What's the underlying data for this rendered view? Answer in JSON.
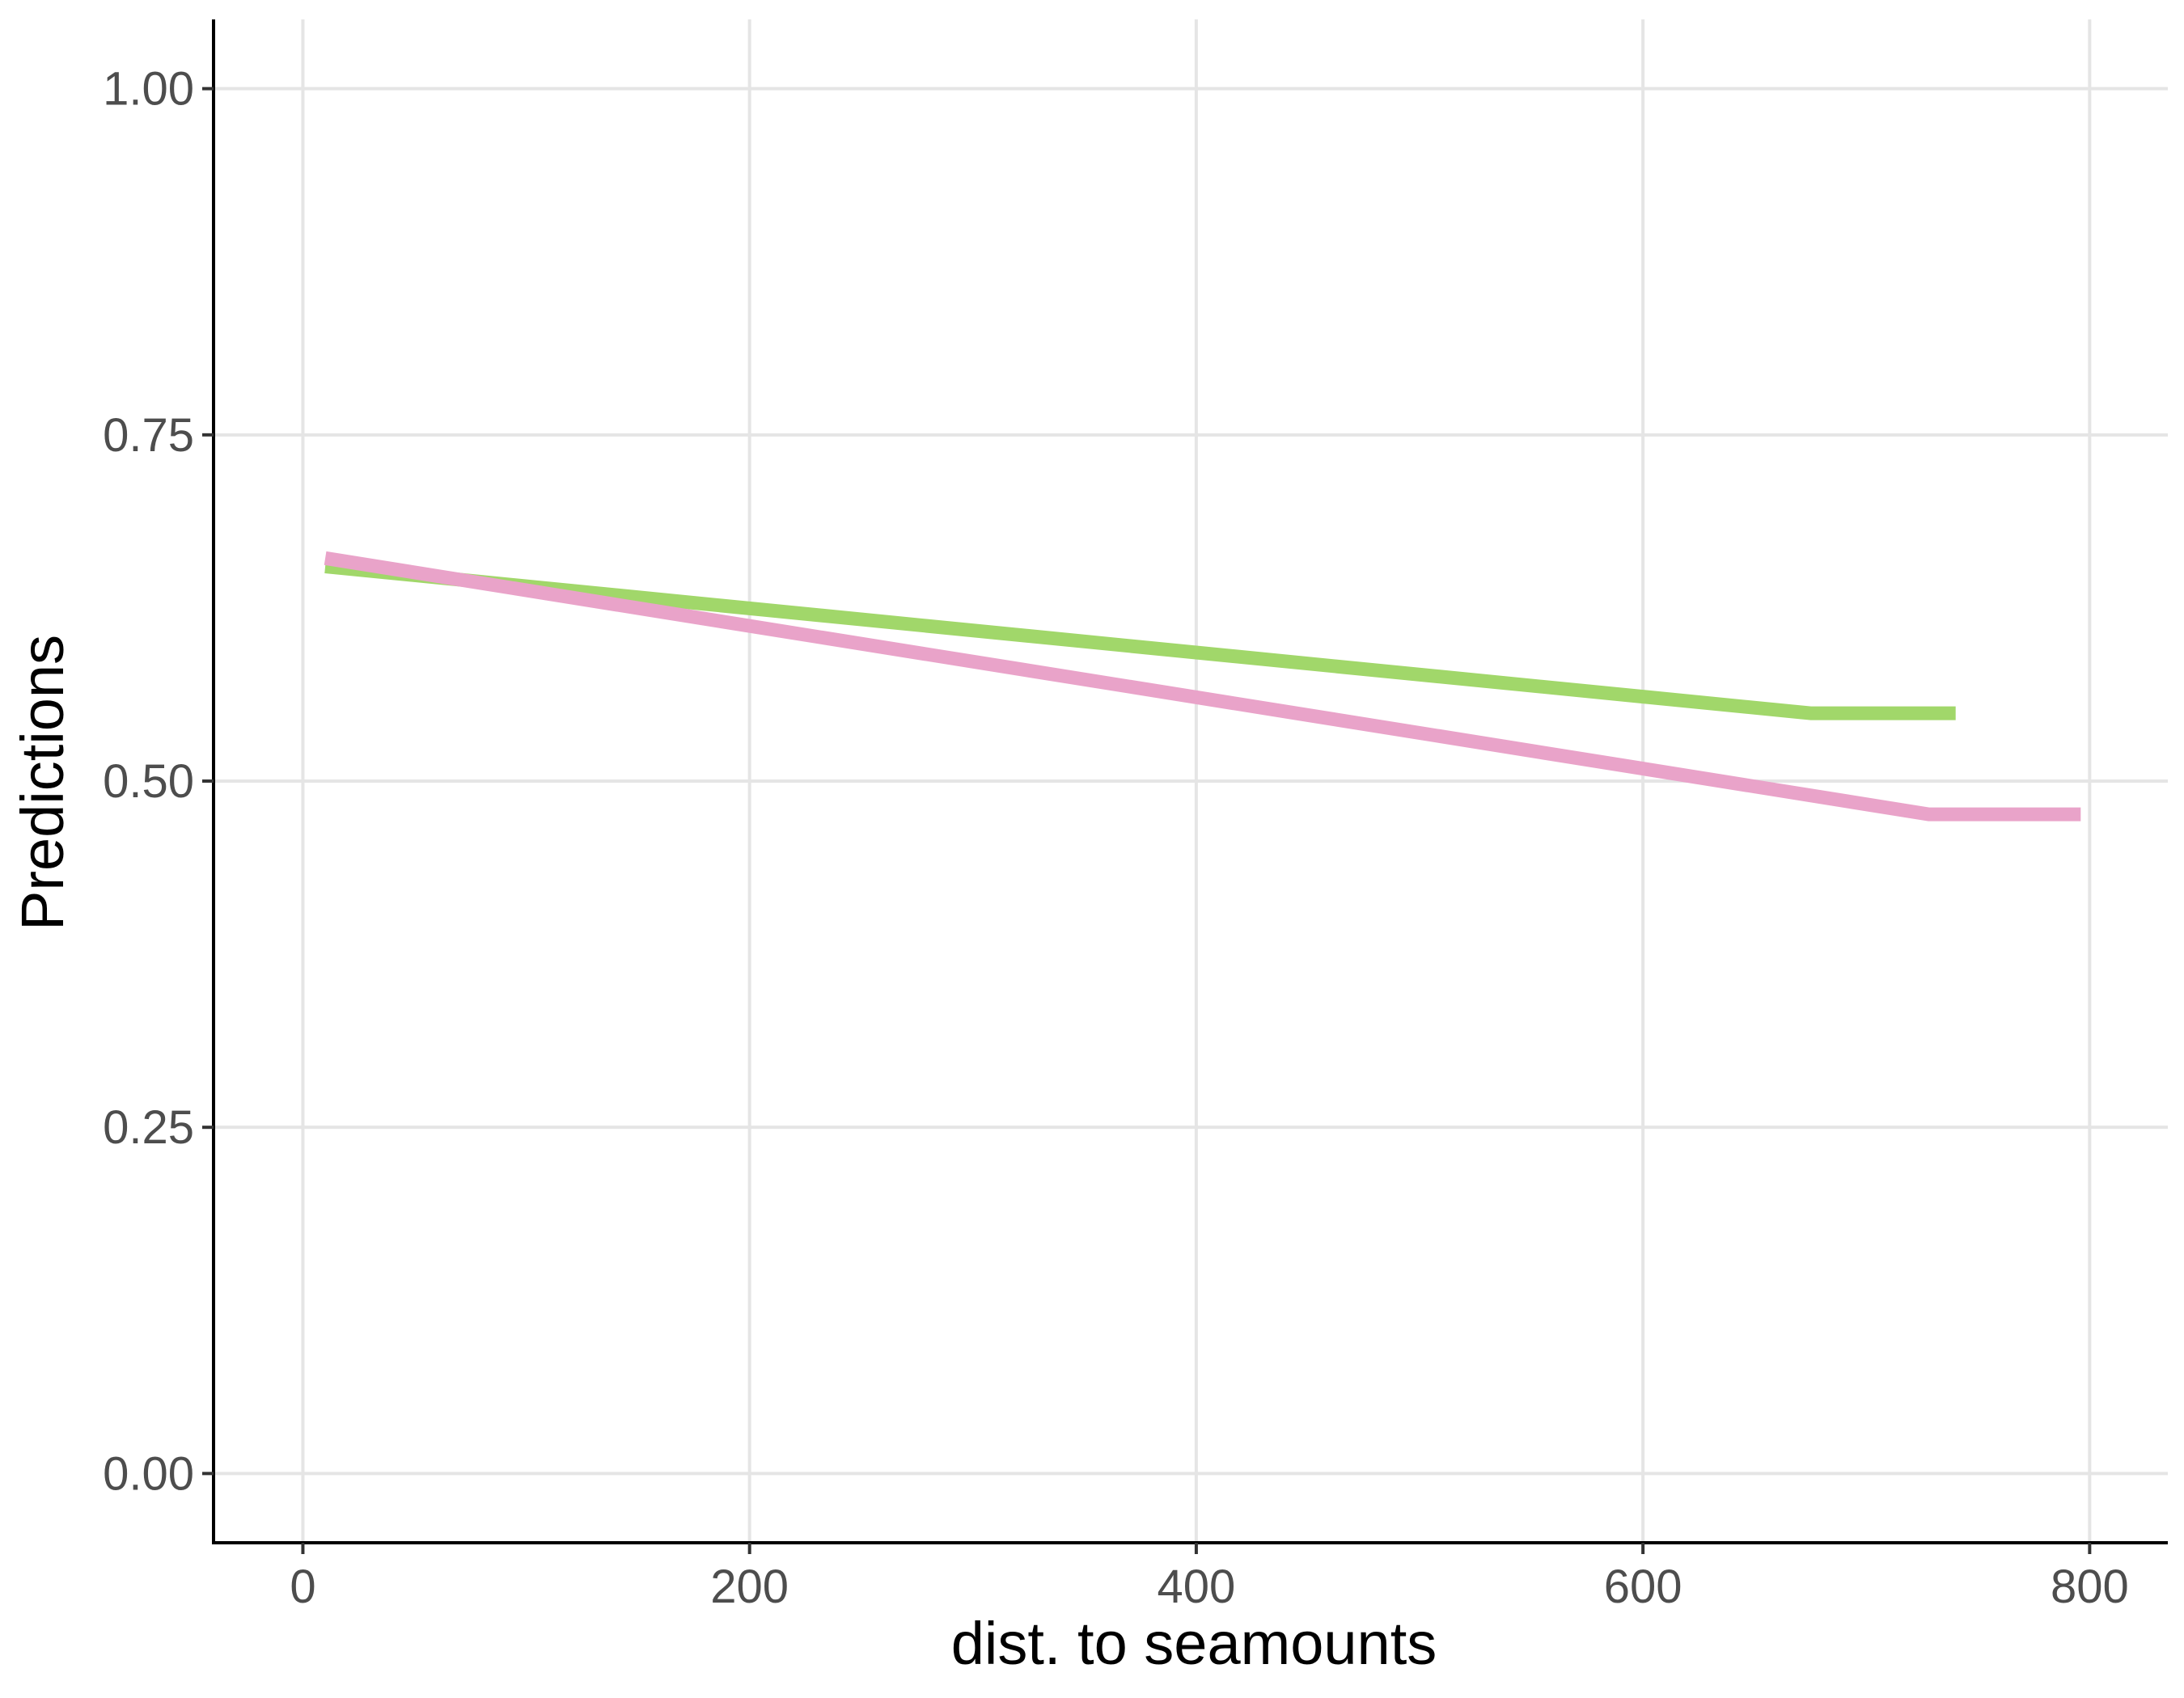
{
  "chart_data": {
    "type": "line",
    "title": "",
    "xlabel": "dist. to seamounts",
    "ylabel": "Predictions",
    "xlim": [
      -40,
      835
    ],
    "ylim": [
      -0.05,
      1.05
    ],
    "x_ticks": [
      0,
      200,
      400,
      600,
      800
    ],
    "x_tick_labels": [
      "0",
      "200",
      "400",
      "600",
      "800"
    ],
    "y_ticks": [
      0,
      0.25,
      0.5,
      0.75,
      1.0
    ],
    "y_tick_labels": [
      "0.00",
      "0.25",
      "0.50",
      "0.75",
      "1.00"
    ],
    "grid": true,
    "legend": "none",
    "series": [
      {
        "color": "#a1d76a",
        "x": [
          10,
          675,
          740
        ],
        "y": [
          0.655,
          0.549,
          0.549
        ]
      },
      {
        "color": "#e9a3c9",
        "x": [
          10,
          728,
          796
        ],
        "y": [
          0.661,
          0.476,
          0.476
        ]
      }
    ]
  }
}
